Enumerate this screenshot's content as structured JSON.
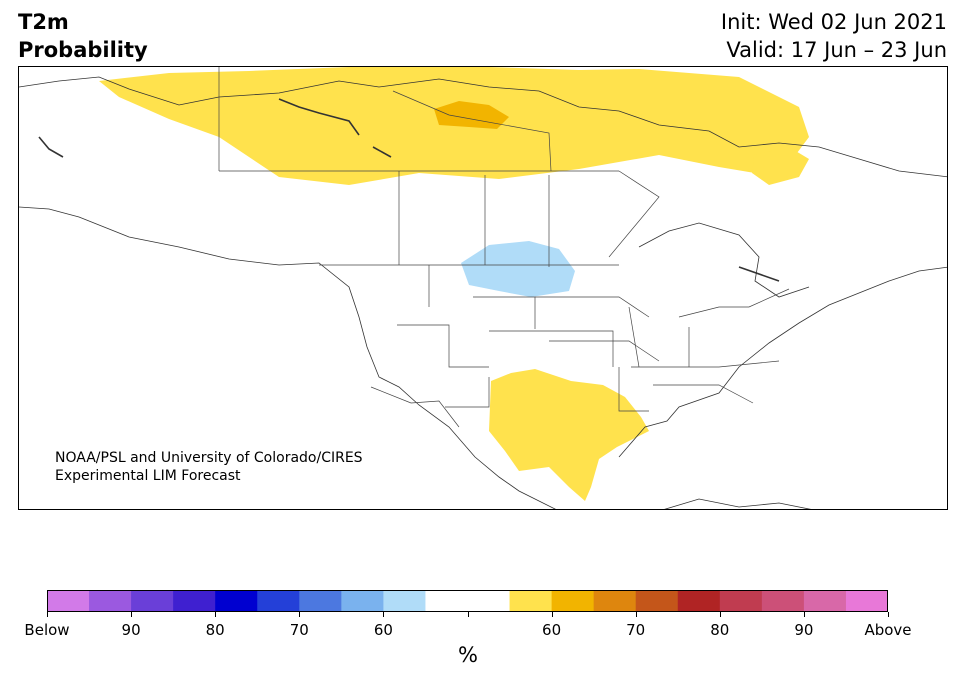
{
  "header": {
    "variable": "T2m",
    "product": "Probability",
    "init": "Init: Wed 02 Jun 2021",
    "valid": "Valid: 17 Jun – 23 Jun"
  },
  "credit": {
    "line1": "NOAA/PSL and University of Colorado/CIRES",
    "line2": "Experimental LIM Forecast"
  },
  "colorbar": {
    "unit": "%",
    "colors": [
      "#d27ae8",
      "#9b59e0",
      "#6a3fd8",
      "#3f20d0",
      "#0000d0",
      "#2440d8",
      "#4c78e0",
      "#7ab2ee",
      "#b0dcf8",
      "#ffffff",
      "#ffffff",
      "#ffe24d",
      "#f2b400",
      "#de860e",
      "#c4561a",
      "#b02424",
      "#c03c50",
      "#cc5078",
      "#d868a8",
      "#e878d8"
    ],
    "labels": [
      "Below",
      "90",
      "80",
      "70",
      "60",
      "",
      "60",
      "70",
      "80",
      "90",
      "Above"
    ]
  },
  "map_features": {
    "above_color": "#ffe24d",
    "above_strong_color": "#f2b400",
    "below_color": "#b0dcf8"
  }
}
